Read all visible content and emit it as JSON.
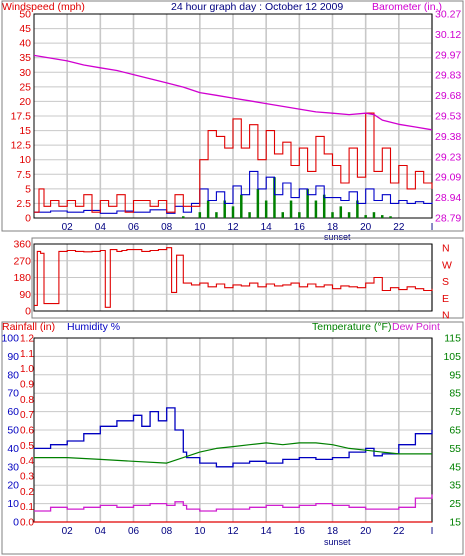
{
  "header": {
    "left_label": "Windspeed (mph)",
    "title": "24 hour graph day : October 12 2009",
    "right_label": "Barometer (in.)"
  },
  "footer_labels": {
    "sunset_top": "sunset",
    "sunset_bottom": "sunset"
  },
  "bottom_header": {
    "rainfall": "Rainfall (in)",
    "humidity": "Humidity %",
    "temperature": "Temperature (°F)",
    "dewpoint": "Dew Point"
  },
  "colors": {
    "wind": "#e00000",
    "wind_avg": "#0000c8",
    "wind_low": "#008000",
    "barometer": "#d000d0",
    "direction": "#e00000",
    "humidity": "#0000c0",
    "temperature": "#008000",
    "dewpoint": "#d020d0",
    "rain": "#e00000",
    "grid": "#c8c8c8"
  },
  "chart_data": [
    {
      "type": "line",
      "name": "wind-barometer",
      "x_ticks": [
        "02",
        "04",
        "06",
        "08",
        "10",
        "12",
        "14",
        "16",
        "18",
        "20",
        "22",
        "I"
      ],
      "x_range": [
        0,
        24
      ],
      "ylim_left": [
        0,
        50
      ],
      "yticks_left": [
        "0",
        "2.5",
        "5",
        "7.5",
        "10",
        "12.5",
        "15",
        "17.5",
        "20",
        "25",
        "30",
        "35",
        "40",
        "45",
        "50"
      ],
      "ylim_right": [
        28.79,
        30.27
      ],
      "yticks_right": [
        "28.79",
        "28.94",
        "29.09",
        "29.23",
        "29.38",
        "29.53",
        "29.68",
        "29.83",
        "29.97",
        "30.12",
        "30.27"
      ],
      "annotation": "sunset",
      "series": [
        {
          "x": [
            0,
            0.3,
            0.6,
            1,
            1.5,
            2,
            2.5,
            3,
            3.5,
            4,
            4.5,
            5,
            5.5,
            6,
            6.5,
            7,
            7.5,
            8,
            8.5,
            9,
            9.5,
            10,
            10.5,
            11,
            11.5,
            12,
            12.5,
            13,
            13.5,
            14,
            14.5,
            15,
            15.5,
            16,
            16.5,
            17,
            17.5,
            18,
            18.5,
            19,
            19.5,
            20,
            20.5,
            21,
            21.5,
            22,
            22.5,
            23,
            23.5,
            24
          ],
          "y": [
            1,
            5,
            2,
            3,
            2,
            3,
            2,
            4,
            1,
            3,
            2,
            4,
            1,
            3,
            3,
            2,
            3,
            1,
            4,
            2,
            2,
            10,
            15,
            14,
            12,
            17,
            12,
            16,
            10,
            15,
            11,
            13,
            9,
            12,
            8,
            14,
            11,
            9,
            6,
            12,
            7,
            18,
            8,
            12,
            6,
            9,
            5,
            8,
            6,
            5
          ]
        },
        {
          "x": [
            0,
            1,
            2,
            3,
            4,
            5,
            6,
            7,
            8,
            8.5,
            9,
            9.5,
            10,
            10.5,
            11,
            11.5,
            12,
            12.5,
            13,
            13.5,
            14,
            14.5,
            15,
            15.5,
            16,
            16.5,
            17,
            17.5,
            18,
            18.5,
            19,
            19.5,
            20,
            20.5,
            21,
            21.5,
            22,
            22.5,
            23,
            23.5,
            24
          ],
          "y": [
            1,
            1.2,
            1,
            1.3,
            0.8,
            1.2,
            1,
            1.4,
            0.8,
            2,
            1,
            2.5,
            5,
            3,
            4.5,
            2.5,
            5.5,
            4,
            8,
            5,
            7,
            4,
            6,
            3.5,
            5,
            4,
            5.5,
            3.5,
            3.5,
            3,
            4.5,
            2.5,
            5,
            3,
            4,
            2.5,
            3,
            2.5,
            2.8,
            2.5,
            2.7
          ]
        },
        {
          "x": [
            0,
            2,
            4,
            6,
            8,
            9,
            10,
            10.5,
            11,
            11.5,
            12,
            12.5,
            13,
            13.5,
            14,
            14.5,
            15,
            15.5,
            16,
            16.5,
            17,
            17.5,
            18,
            18.5,
            19,
            19.5,
            20,
            20.5,
            21,
            21.5,
            22,
            23,
            24
          ],
          "y": [
            0,
            0,
            0,
            0,
            0,
            0.3,
            1,
            3,
            1,
            3,
            2,
            4,
            1,
            5,
            3,
            7,
            1,
            3,
            1,
            5,
            3,
            4,
            1,
            2,
            1,
            3,
            0.5,
            1,
            0.5,
            0.3,
            0,
            0,
            0
          ]
        },
        {
          "x": [
            0,
            1,
            2,
            3,
            4,
            5,
            6,
            7,
            8,
            9,
            10,
            11,
            12,
            13,
            14,
            15,
            16,
            17,
            18,
            19,
            20,
            20.5,
            21,
            22,
            23,
            24
          ],
          "y": [
            29.97,
            29.95,
            29.93,
            29.9,
            29.88,
            29.86,
            29.83,
            29.8,
            29.77,
            29.74,
            29.7,
            29.68,
            29.66,
            29.64,
            29.62,
            29.6,
            29.58,
            29.56,
            29.55,
            29.54,
            29.55,
            29.54,
            29.5,
            29.47,
            29.45,
            29.43
          ]
        }
      ]
    },
    {
      "type": "line",
      "name": "wind-direction",
      "x_range": [
        0,
        24
      ],
      "ylim": [
        0,
        360
      ],
      "yticks": [
        "0",
        "90",
        "180",
        "270",
        "360"
      ],
      "compass": [
        "N",
        "W",
        "S",
        "E",
        "N"
      ],
      "series": [
        {
          "x": [
            0,
            0.2,
            0.4,
            0.6,
            1,
            1.5,
            2,
            2.5,
            3,
            3.5,
            4,
            4.3,
            4.6,
            5,
            5.3,
            5.6,
            6,
            6.5,
            7,
            7.5,
            8,
            8.3,
            8.6,
            9,
            9.5,
            10,
            10.5,
            11,
            11.5,
            12,
            12.5,
            13,
            13.5,
            14,
            14.5,
            15,
            15.5,
            16,
            16.5,
            17,
            17.5,
            18,
            18.5,
            19,
            19.5,
            20,
            20.5,
            21,
            21.5,
            22,
            22.5,
            23,
            23.5,
            24
          ],
          "y": [
            30,
            320,
            310,
            40,
            40,
            320,
            325,
            320,
            318,
            320,
            325,
            20,
            330,
            320,
            325,
            330,
            330,
            320,
            325,
            330,
            340,
            100,
            300,
            150,
            140,
            150,
            130,
            145,
            125,
            140,
            135,
            150,
            130,
            145,
            135,
            140,
            150,
            130,
            145,
            130,
            140,
            120,
            135,
            130,
            125,
            150,
            180,
            110,
            125,
            115,
            130,
            120,
            110,
            120
          ]
        }
      ]
    },
    {
      "type": "line",
      "name": "humidity-temperature",
      "ylim_rain": [
        0,
        1.2
      ],
      "yticks_rain": [
        "0.0",
        "0.1",
        "0.2",
        "0.3",
        "0.4",
        "0.5",
        "0.6",
        "0.7",
        "0.8",
        "0.9",
        "1.0",
        "1.1",
        "1.2"
      ],
      "ylim_humidity": [
        0,
        100
      ],
      "yticks_humidity": [
        "0",
        "10",
        "20",
        "30",
        "40",
        "50",
        "60",
        "70",
        "80",
        "90",
        "100"
      ],
      "ylim_temp": [
        15,
        115
      ],
      "yticks_temp": [
        "15",
        "25",
        "35",
        "45",
        "55",
        "65",
        "75",
        "85",
        "95",
        "105",
        "115"
      ],
      "annotation": "sunset",
      "series": [
        {
          "x": [
            0,
            1,
            2,
            3,
            4,
            5,
            6,
            6.5,
            7,
            7.5,
            8,
            8.5,
            9,
            9.2,
            10,
            11,
            12,
            13,
            14,
            15,
            16,
            17,
            18,
            19,
            20,
            20.5,
            21,
            22,
            23,
            24
          ],
          "y": [
            40,
            42,
            44,
            48,
            52,
            55,
            58,
            52,
            60,
            55,
            62,
            50,
            38,
            35,
            32,
            30,
            32,
            33,
            32,
            34,
            35,
            34,
            35,
            38,
            40,
            36,
            37,
            42,
            48,
            50
          ]
        },
        {
          "x": [
            0,
            2,
            4,
            6,
            8,
            9,
            10,
            11,
            12,
            13,
            14,
            15,
            16,
            17,
            18,
            19,
            20,
            21,
            22,
            23,
            24
          ],
          "y": [
            50,
            50,
            49,
            48,
            47,
            50,
            53,
            55,
            56,
            57,
            58,
            57,
            58,
            58,
            57,
            55,
            54,
            53,
            52,
            52,
            52
          ]
        },
        {
          "x": [
            0,
            1,
            2,
            3,
            4,
            5,
            6,
            7,
            8,
            8.5,
            9,
            9.2,
            10,
            11,
            12,
            13,
            14,
            15,
            16,
            17,
            18,
            19,
            20,
            21,
            22,
            23,
            24
          ],
          "y": [
            21,
            23,
            22,
            23,
            24,
            23,
            24,
            25,
            24,
            26,
            24,
            22,
            21,
            22,
            22,
            23,
            24,
            23,
            24,
            25,
            24,
            23,
            22,
            22,
            23,
            28,
            30
          ]
        },
        {
          "x": [
            0,
            24
          ],
          "y": [
            0,
            0
          ]
        }
      ]
    }
  ]
}
